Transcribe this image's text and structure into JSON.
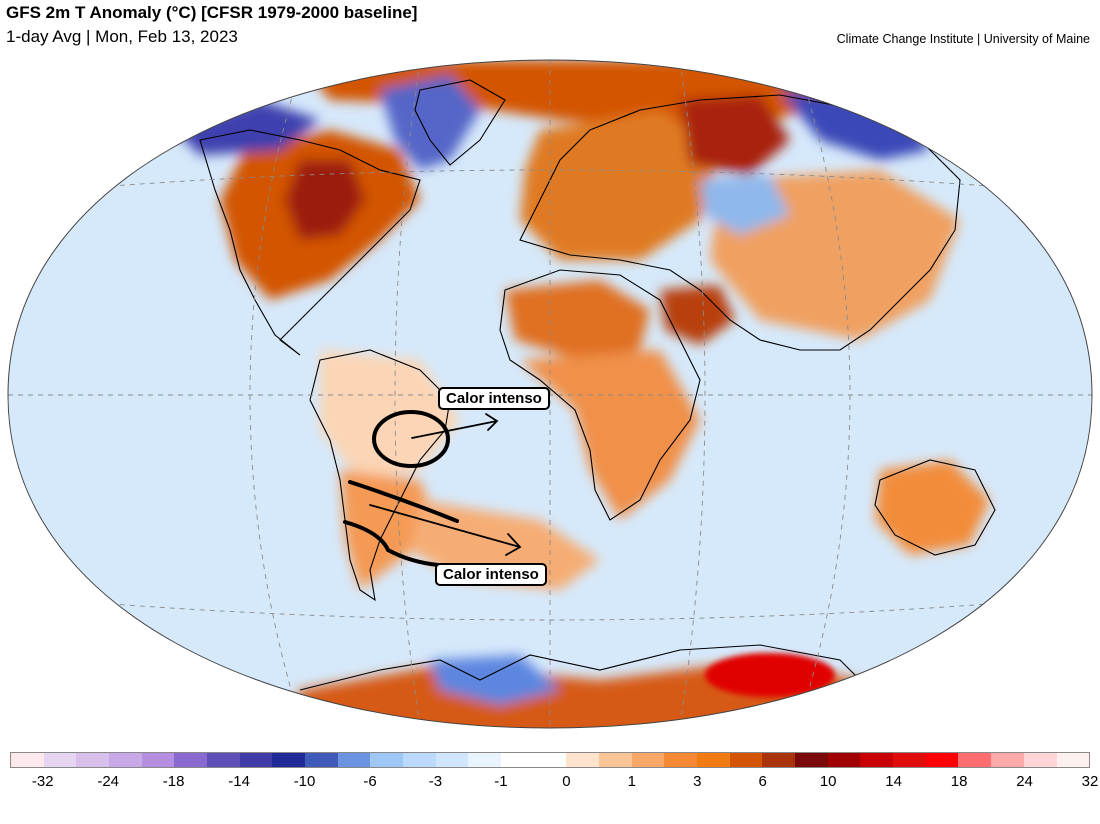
{
  "header": {
    "title": "GFS 2m T Anomaly (°C) [CFSR 1979-2000 baseline]",
    "subtitle": "1-day Avg | Mon, Feb 13, 2023",
    "credit": "Climate Change Institute | University of Maine"
  },
  "annotations": {
    "label_1": "Calor intenso",
    "label_2": "Calor intenso"
  },
  "map": {
    "projection": "Winkel Tripel",
    "ocean_base_color": "#d6e9fb",
    "land_outline_color": "#000000",
    "graticule_color": "#8a8a8a",
    "annotation_color": "#000000",
    "regions": [
      {
        "name": "north-america-warm",
        "anomaly": 8,
        "color": "#d35400"
      },
      {
        "name": "hudson-bay-hot",
        "anomaly": 12,
        "color": "#9b1b0b"
      },
      {
        "name": "arctic-canada-cold",
        "anomaly": -12,
        "color": "#3c3fae"
      },
      {
        "name": "greenland-cold",
        "anomaly": -8,
        "color": "#5566c8"
      },
      {
        "name": "arctic-warm-band",
        "anomaly": 7,
        "color": "#d35400"
      },
      {
        "name": "europe-warm",
        "anomaly": 6,
        "color": "#e07a22"
      },
      {
        "name": "western-russia-hot",
        "anomaly": 11,
        "color": "#a8230c"
      },
      {
        "name": "siberia-cold",
        "anomaly": -9,
        "color": "#3a48b8"
      },
      {
        "name": "asia-mixed-warm",
        "anomaly": 4,
        "color": "#f0a060"
      },
      {
        "name": "central-asia-cold",
        "anomaly": -4,
        "color": "#8fb8ec"
      },
      {
        "name": "sahara-warm",
        "anomaly": 6,
        "color": "#e07020"
      },
      {
        "name": "arabia-hot",
        "anomaly": 9,
        "color": "#b8400e"
      },
      {
        "name": "africa-warm",
        "anomaly": 4,
        "color": "#f09048"
      },
      {
        "name": "south-america-mixed",
        "anomaly": 1,
        "color": "#fbd5b5"
      },
      {
        "name": "southern-south-america-warm",
        "anomaly": 4,
        "color": "#f49a55"
      },
      {
        "name": "south-atlantic-warm",
        "anomaly": 3,
        "color": "#f6ad75"
      },
      {
        "name": "australia-warm",
        "anomaly": 4,
        "color": "#f28c3a"
      },
      {
        "name": "antarctica-warm",
        "anomaly": 7,
        "color": "#d65a14"
      },
      {
        "name": "antarctica-hot",
        "anomaly": 18,
        "color": "#e10000"
      },
      {
        "name": "antarctic-peninsula-cold",
        "anomaly": -6,
        "color": "#5d86e0"
      }
    ]
  },
  "colorbar": {
    "colors": [
      "#fde8ec",
      "#e6d5f0",
      "#d9c0ec",
      "#c8a8e6",
      "#b48fe0",
      "#8a6ad0",
      "#5d4fb8",
      "#3f3aa8",
      "#1f2a96",
      "#3f5ab8",
      "#6a93e0",
      "#9fc6f5",
      "#bad9fb",
      "#d0e6fc",
      "#e8f3fe",
      "#ffffff",
      "#ffffff",
      "#fde3cc",
      "#fcc596",
      "#f9a766",
      "#f68a33",
      "#ef7b12",
      "#d35400",
      "#a8330c",
      "#7a0a0a",
      "#a00000",
      "#c80000",
      "#e10d0d",
      "#fe0000",
      "#ff6e6e",
      "#ffaaaa",
      "#ffd5d5",
      "#fff0f0"
    ],
    "tick_labels": [
      "-32",
      "-24",
      "-18",
      "-14",
      "-10",
      "-6",
      "-3",
      "-1",
      "0",
      "1",
      "3",
      "6",
      "10",
      "14",
      "18",
      "24",
      "32"
    ]
  }
}
